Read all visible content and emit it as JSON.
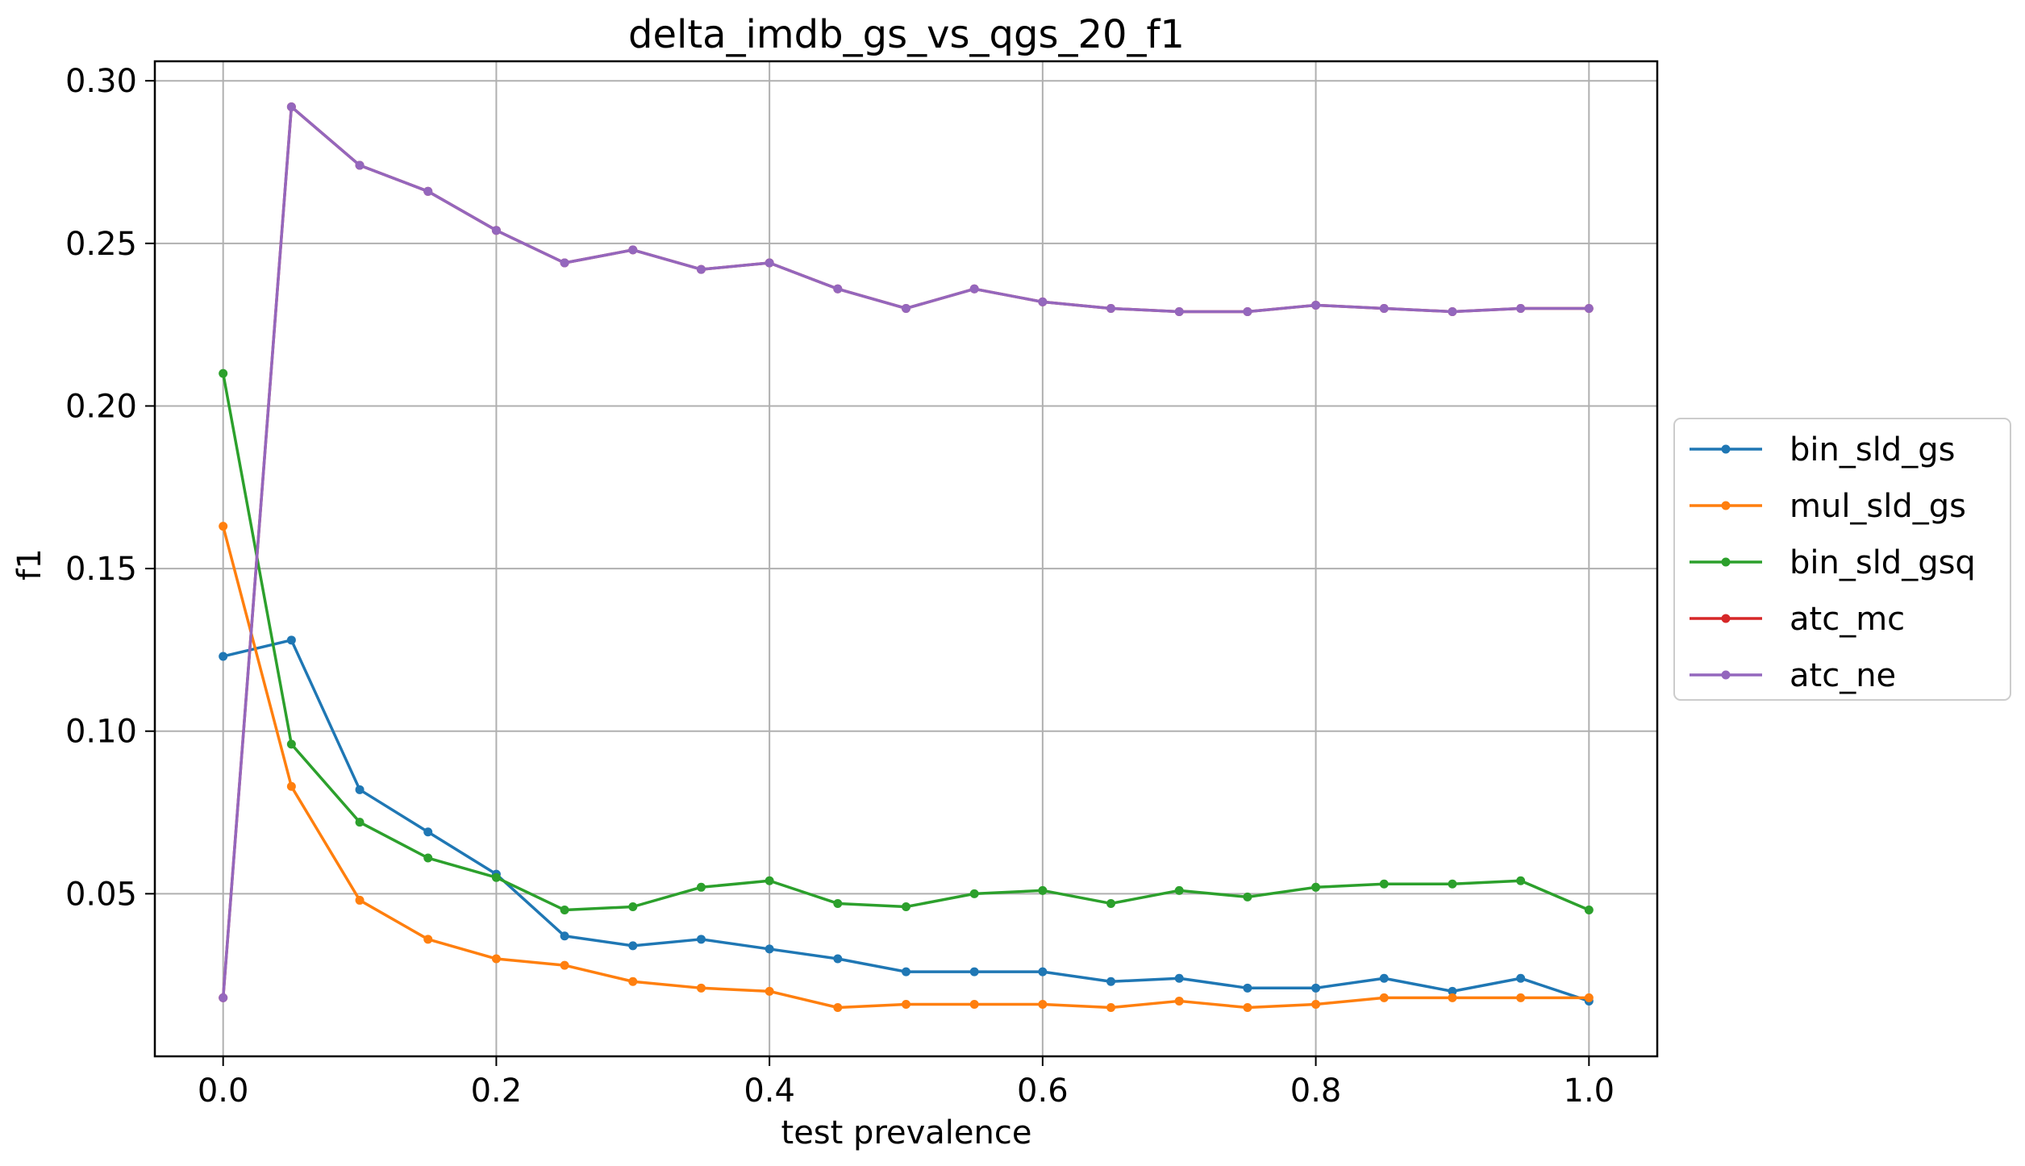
{
  "chart_data": {
    "type": "line",
    "title": "delta_imdb_gs_vs_qgs_20_f1",
    "xlabel": "test prevalence",
    "ylabel": "f1",
    "xlim": [
      -0.05,
      1.05
    ],
    "ylim": [
      0.0,
      0.306
    ],
    "xticks": [
      0.0,
      0.2,
      0.4,
      0.6,
      0.8,
      1.0
    ],
    "xtick_labels": [
      "0.0",
      "0.2",
      "0.4",
      "0.6",
      "0.8",
      "1.0"
    ],
    "yticks": [
      0.05,
      0.1,
      0.15,
      0.2,
      0.25,
      0.3
    ],
    "ytick_labels": [
      "0.05",
      "0.10",
      "0.15",
      "0.20",
      "0.25",
      "0.30"
    ],
    "grid": true,
    "legend_position": "center right, outside plot",
    "x": [
      0.0,
      0.05,
      0.1,
      0.15,
      0.2,
      0.25,
      0.3,
      0.35,
      0.4,
      0.45,
      0.5,
      0.55,
      0.6,
      0.65,
      0.7,
      0.75,
      0.8,
      0.85,
      0.9,
      0.95,
      1.0
    ],
    "series": [
      {
        "name": "bin_sld_gs",
        "color": "#1f77b4",
        "values": [
          0.123,
          0.128,
          0.082,
          0.069,
          0.056,
          0.037,
          0.034,
          0.036,
          0.033,
          0.03,
          0.026,
          0.026,
          0.026,
          0.023,
          0.024,
          0.021,
          0.021,
          0.024,
          0.02,
          0.024,
          0.017
        ]
      },
      {
        "name": "mul_sld_gs",
        "color": "#ff7f0e",
        "values": [
          0.163,
          0.083,
          0.048,
          0.036,
          0.03,
          0.028,
          0.023,
          0.021,
          0.02,
          0.015,
          0.016,
          0.016,
          0.016,
          0.015,
          0.017,
          0.015,
          0.016,
          0.018,
          0.018,
          0.018,
          0.018
        ]
      },
      {
        "name": "bin_sld_gsq",
        "color": "#2ca02c",
        "values": [
          0.21,
          0.096,
          0.072,
          0.061,
          0.055,
          0.045,
          0.046,
          0.052,
          0.054,
          0.047,
          0.046,
          0.05,
          0.051,
          0.047,
          0.051,
          0.049,
          0.052,
          0.053,
          0.053,
          0.054,
          0.045
        ]
      },
      {
        "name": "atc_mc",
        "color": "#d62728",
        "values": [
          0.018,
          0.292,
          0.274,
          0.266,
          0.254,
          0.244,
          0.248,
          0.242,
          0.244,
          0.236,
          0.23,
          0.236,
          0.232,
          0.23,
          0.229,
          0.229,
          0.231,
          0.23,
          0.229,
          0.23,
          0.23
        ]
      },
      {
        "name": "atc_ne",
        "color": "#9467bd",
        "values": [
          0.018,
          0.292,
          0.274,
          0.266,
          0.254,
          0.244,
          0.248,
          0.242,
          0.244,
          0.236,
          0.23,
          0.236,
          0.232,
          0.23,
          0.229,
          0.229,
          0.231,
          0.23,
          0.229,
          0.23,
          0.23
        ]
      }
    ]
  }
}
